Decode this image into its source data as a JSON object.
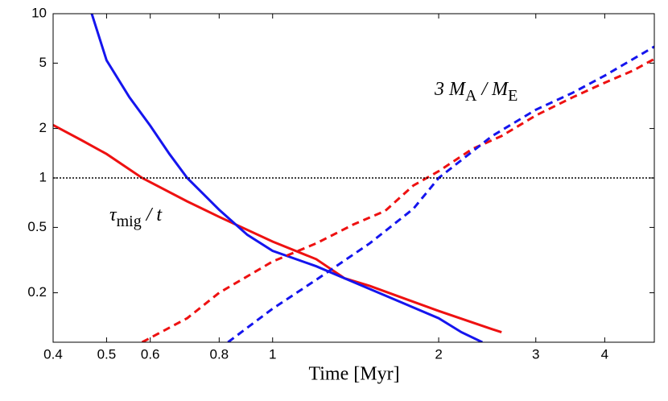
{
  "chart_data": {
    "type": "line",
    "x_label": "Time [Myr]",
    "xlog": true,
    "ylog": true,
    "xlim": [
      0.4,
      4.92
    ],
    "ylim": [
      0.1,
      10
    ],
    "xticks": [
      0.4,
      0.5,
      0.6,
      0.8,
      1,
      2,
      3,
      4
    ],
    "yticks": [
      0.2,
      0.5,
      1,
      2,
      5,
      10
    ],
    "hline": 1,
    "annotations": [
      [
        {
          "text": "τ"
        },
        {
          "text": "mig",
          "sub": true
        },
        {
          "text": " / t"
        }
      ],
      [
        {
          "text": "3 M"
        },
        {
          "text": "A",
          "sub": true
        },
        {
          "text": " / M"
        },
        {
          "text": "E",
          "sub": true
        }
      ]
    ],
    "series": [
      {
        "color": "#ee1111",
        "linestyle": "solid",
        "x": [
          0.4,
          0.45,
          0.5,
          0.58,
          0.7,
          0.8,
          1,
          1.2,
          1.35,
          1.5,
          2,
          2.5,
          2.6
        ],
        "values": [
          2.1,
          1.7,
          1.4,
          1.0,
          0.72,
          0.58,
          0.41,
          0.32,
          0.245,
          0.22,
          0.155,
          0.12,
          0.115
        ]
      },
      {
        "color": "#1515ee",
        "linestyle": "solid",
        "x": [
          0.47,
          0.5,
          0.55,
          0.6,
          0.65,
          0.7,
          0.8,
          0.9,
          1,
          1.2,
          1.35,
          2,
          2.2,
          2.4
        ],
        "values": [
          10,
          5.2,
          3.1,
          2.08,
          1.4,
          1.0,
          0.64,
          0.45,
          0.36,
          0.29,
          0.245,
          0.14,
          0.115,
          0.1
        ]
      },
      {
        "color": "#ee1111",
        "linestyle": "dashed",
        "x": [
          0.58,
          0.7,
          0.8,
          1,
          1.2,
          1.4,
          1.6,
          1.8,
          2,
          2.3,
          2.6,
          3,
          3.5,
          4,
          4.5,
          4.92
        ],
        "values": [
          0.1,
          0.14,
          0.2,
          0.31,
          0.4,
          0.52,
          0.63,
          0.9,
          1.1,
          1.5,
          1.8,
          2.4,
          3.1,
          3.8,
          4.5,
          5.3
        ]
      },
      {
        "color": "#1515ee",
        "linestyle": "dashed",
        "x": [
          0.83,
          1,
          1.2,
          1.5,
          1.8,
          2,
          2.5,
          3,
          3.5,
          4,
          4.92
        ],
        "values": [
          0.1,
          0.16,
          0.24,
          0.4,
          0.65,
          1.0,
          1.8,
          2.6,
          3.3,
          4.2,
          6.3
        ]
      }
    ]
  }
}
